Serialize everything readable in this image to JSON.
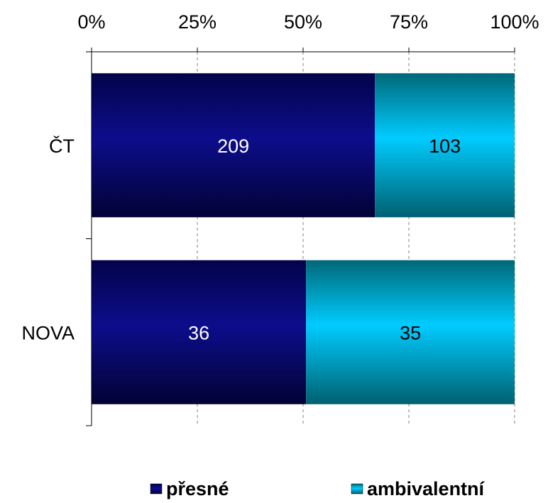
{
  "chart_data": {
    "type": "bar",
    "orientation": "horizontal",
    "stacked": "percent",
    "categories": [
      "ČT",
      "NOVA"
    ],
    "series": [
      {
        "name": "přesné",
        "values": [
          209,
          36
        ],
        "color": "#0a0a7a",
        "label_color": "#ffffff"
      },
      {
        "name": "ambivalentní",
        "values": [
          103,
          35
        ],
        "color": "#00c8f0",
        "label_color": "#000000"
      }
    ],
    "x_ticks": [
      "0%",
      "25%",
      "50%",
      "75%",
      "100%"
    ],
    "xlim": [
      0,
      100
    ],
    "x_unit": "%",
    "grid": "vertical dashed",
    "legend_position": "bottom"
  }
}
